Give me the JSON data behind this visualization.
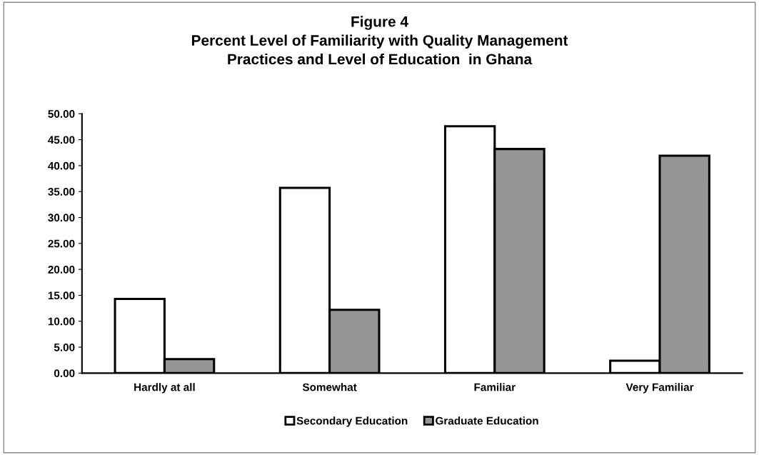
{
  "chart_data": {
    "type": "bar",
    "title": "Figure 4\nPercent Level of Familiarity with Quality Management\nPractices and Level of Education  in Ghana",
    "categories": [
      "Hardly at all",
      "Somewhat",
      "Familiar",
      "Very Familiar"
    ],
    "series": [
      {
        "name": "Secondary Education",
        "color": "#ffffff",
        "values": [
          14.3,
          35.7,
          47.6,
          2.4
        ]
      },
      {
        "name": "Graduate Education",
        "color": "#969696",
        "values": [
          2.7,
          12.2,
          43.2,
          41.9
        ]
      }
    ],
    "ylim": [
      0,
      50
    ],
    "yticks": [
      {
        "value": 0,
        "label": "0.00"
      },
      {
        "value": 5,
        "label": "5.00"
      },
      {
        "value": 10,
        "label": "10.00"
      },
      {
        "value": 15,
        "label": "15.00"
      },
      {
        "value": 20,
        "label": "20.00"
      },
      {
        "value": 25,
        "label": "25.00"
      },
      {
        "value": 30,
        "label": "30.00"
      },
      {
        "value": 35,
        "label": "35.00"
      },
      {
        "value": 40,
        "label": "40.00"
      },
      {
        "value": 45,
        "label": "45.00"
      },
      {
        "value": 50,
        "label": "50.00"
      }
    ],
    "grid": false,
    "legend": "bottom"
  }
}
